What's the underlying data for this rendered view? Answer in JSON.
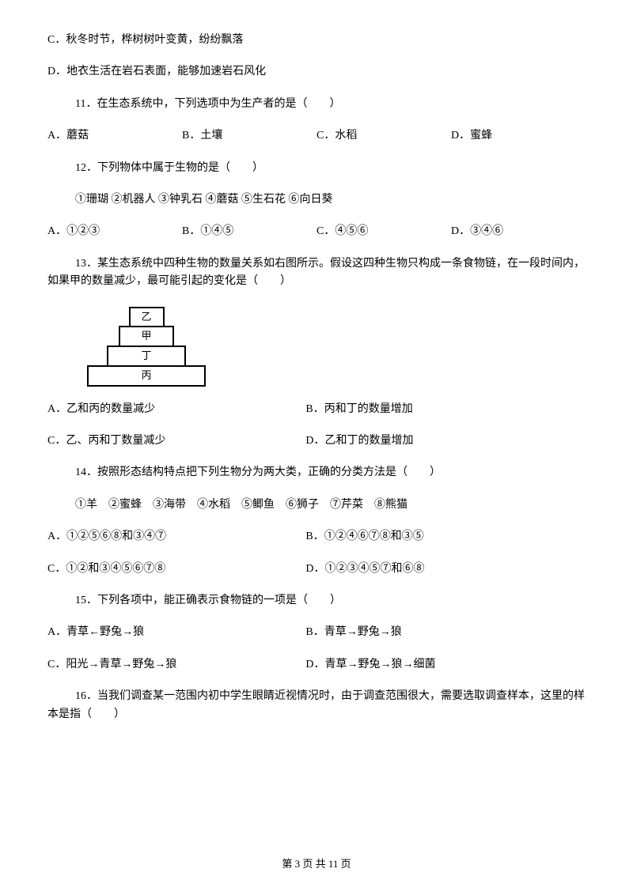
{
  "extra_options": {
    "c": "C．秋冬时节，桦树树叶变黄，纷纷飘落",
    "d": "D．地衣生活在岩石表面，能够加速岩石风化"
  },
  "q11": {
    "stem": "11．在生态系统中，下列选项中为生产者的是（　　）",
    "a": "A．蘑菇",
    "b": "B．土壤",
    "c": "C．水稻",
    "d": "D．蜜蜂"
  },
  "q12": {
    "stem": "12．下列物体中属于生物的是（　　）",
    "list": "①珊瑚 ②机器人 ③钟乳石 ④蘑菇 ⑤生石花 ⑥向日葵",
    "a": "A．①②③",
    "b": "B．①④⑤",
    "c": "C．④⑤⑥",
    "d": "D．③④⑥"
  },
  "q13": {
    "stem": "13．某生态系统中四种生物的数量关系如右图所示。假设这四种生物只构成一条食物链，在一段时间内，如果甲的数量减少，最可能引起的变化是（　　）",
    "pyramid": {
      "levels": [
        "乙",
        "甲",
        "丁",
        "丙"
      ],
      "widths": [
        45,
        70,
        100,
        150
      ],
      "border_color": "#000000",
      "background_color": "#ffffff"
    },
    "a": "A．乙和丙的数量减少",
    "b": "B．丙和丁的数量增加",
    "c": "C．乙、丙和丁数量减少",
    "d": "D．乙和丁的数量增加"
  },
  "q14": {
    "stem": "14．按照形态结构特点把下列生物分为两大类，正确的分类方法是（　　）",
    "list": "①羊　②蜜蜂　③海带　④水稻　⑤鲫鱼　⑥狮子　⑦芹菜　⑧熊猫",
    "a": "A．①②⑤⑥⑧和③④⑦",
    "b": "B．①②④⑥⑦⑧和③⑤",
    "c": "C．①②和③④⑤⑥⑦⑧",
    "d": "D．①②③④⑤⑦和⑥⑧"
  },
  "q15": {
    "stem": "15．下列各项中，能正确表示食物链的一项是（　　）",
    "a": "A．青草←野兔→狼",
    "b": "B．青草→野兔→狼",
    "c": "C．阳光→青草→野兔→狼",
    "d": "D．青草→野兔→狼→细菌"
  },
  "q16": {
    "stem": "16．当我们调查某一范围内初中学生眼睛近视情况时，由于调查范围很大，需要选取调查样本，这里的样本是指（　　）"
  },
  "footer": "第 3 页 共 11 页",
  "colors": {
    "text": "#000000",
    "background": "#ffffff"
  },
  "typography": {
    "body_fontsize": 14,
    "footer_fontsize": 13,
    "font_family": "SimSun"
  }
}
